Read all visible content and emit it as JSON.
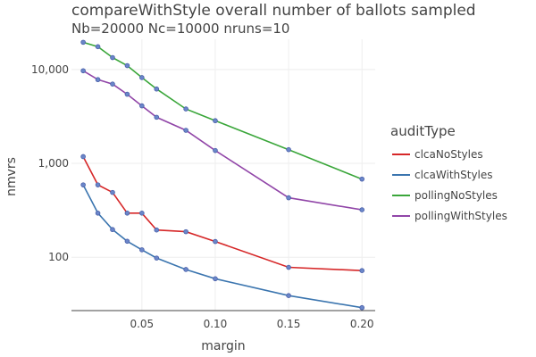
{
  "chart_data": {
    "type": "line",
    "title": "compareWithStyle overall number of ballots sampled",
    "subtitle": "Nb=20000 Nc=10000 nruns=10",
    "xlabel": "margin",
    "ylabel": "nmvrs",
    "y_scale": "log",
    "xlim": [
      0.002,
      0.209
    ],
    "ylim": [
      27,
      21000
    ],
    "x_ticks": [
      0.05,
      0.1,
      0.15,
      0.2
    ],
    "x_tick_labels": [
      "0.05",
      "0.10",
      "0.15",
      "0.20"
    ],
    "y_ticks": [
      100,
      1000,
      10000
    ],
    "y_tick_labels": [
      "100",
      "1,000",
      "10,000"
    ],
    "grid": true,
    "legend_title": "auditType",
    "legend_position": "right",
    "x": [
      0.01,
      0.02,
      0.03,
      0.04,
      0.05,
      0.06,
      0.08,
      0.1,
      0.15,
      0.2
    ],
    "series": [
      {
        "name": "clcaNoStyles",
        "color": "#d62728",
        "values": [
          1180,
          590,
          490,
          295,
          295,
          195,
          187,
          147,
          78,
          72
        ]
      },
      {
        "name": "clcaWithStyles",
        "color": "#3b75af",
        "values": [
          590,
          295,
          197,
          148,
          120,
          98,
          74,
          59,
          39,
          29
        ]
      },
      {
        "name": "pollingNoStyles",
        "color": "#3aa63a",
        "values": [
          19500,
          17500,
          13400,
          11000,
          8200,
          6200,
          3800,
          2850,
          1400,
          680
        ]
      },
      {
        "name": "pollingWithStyles",
        "color": "#9146a8",
        "values": [
          9700,
          7800,
          7000,
          5450,
          4100,
          3100,
          2250,
          1370,
          430,
          320
        ]
      }
    ]
  }
}
